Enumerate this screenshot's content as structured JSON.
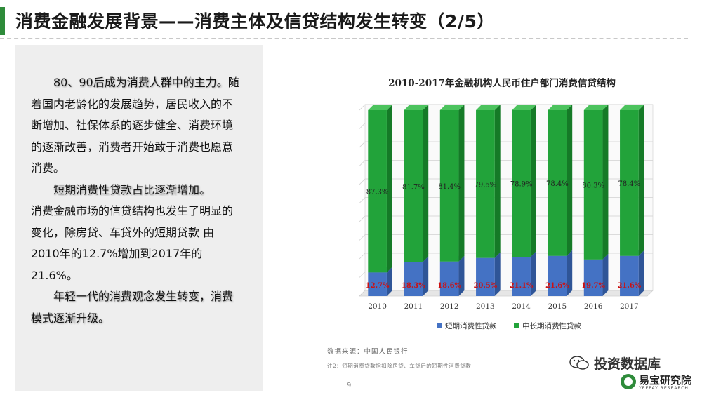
{
  "slide": {
    "title": "消费金融发展背景——消费主体及信贷结构发生转变（2/5）",
    "page_number": "9"
  },
  "left_text": {
    "p1_highlight": "80、90后成为消费人群中的主力。",
    "p1_rest": "随着国内老龄化的发展趋势，居民收入的不断增加、社保体系的逐步健全、消费环境的逐渐改善，消费者开始敢于消费也愿意消费。",
    "p2_highlight": "短期消费性贷款占比逐渐增加。",
    "p2_rest": "消费金融市场的信贷结构也发生了明显的变化，除房贷、车贷外的短期贷款 由2010年的12.7%增加到2017年的21.6%。",
    "p3_highlight": "年轻一代的消费观念发生转变，消费模式逐渐升级。"
  },
  "chart_data": {
    "type": "bar",
    "stacked": true,
    "percent": true,
    "title": "2010-2017年金融机构人民币住户部门消费信贷结构",
    "categories": [
      "2010",
      "2011",
      "2012",
      "2013",
      "2014",
      "2015",
      "2016",
      "2017"
    ],
    "series": [
      {
        "name": "短期消费性贷款",
        "values": [
          12.7,
          18.3,
          18.6,
          20.5,
          21.1,
          21.6,
          19.7,
          21.6
        ],
        "color": "#4472c4",
        "labels": [
          "12.7%",
          "18.3%",
          "18.6%",
          "20.5%",
          "21.1%",
          "21.6%",
          "19.7%",
          "21.6%"
        ]
      },
      {
        "name": "中长期消费性贷款",
        "values": [
          87.3,
          81.7,
          81.4,
          79.5,
          78.9,
          78.4,
          80.3,
          78.4
        ],
        "color": "#22a33a",
        "labels": [
          "87.3%",
          "81.7%",
          "81.4%",
          "79.5%",
          "78.9%",
          "78.4%",
          "80.3%",
          "78.4%"
        ]
      }
    ],
    "ylim": [
      0,
      100
    ],
    "grid": true,
    "legend": "bottom",
    "label_colors": {
      "short": "#cc1111",
      "long": "#222222"
    }
  },
  "source": "数据来源：中国人民银行",
  "note": "注2：短期消费贷款指扣除房贷、车贷后的短期性消费贷款",
  "brand": {
    "name": "投资数据库",
    "logo_text": "易宝研究院",
    "logo_sub": "YEEPAY RESEARCH"
  }
}
